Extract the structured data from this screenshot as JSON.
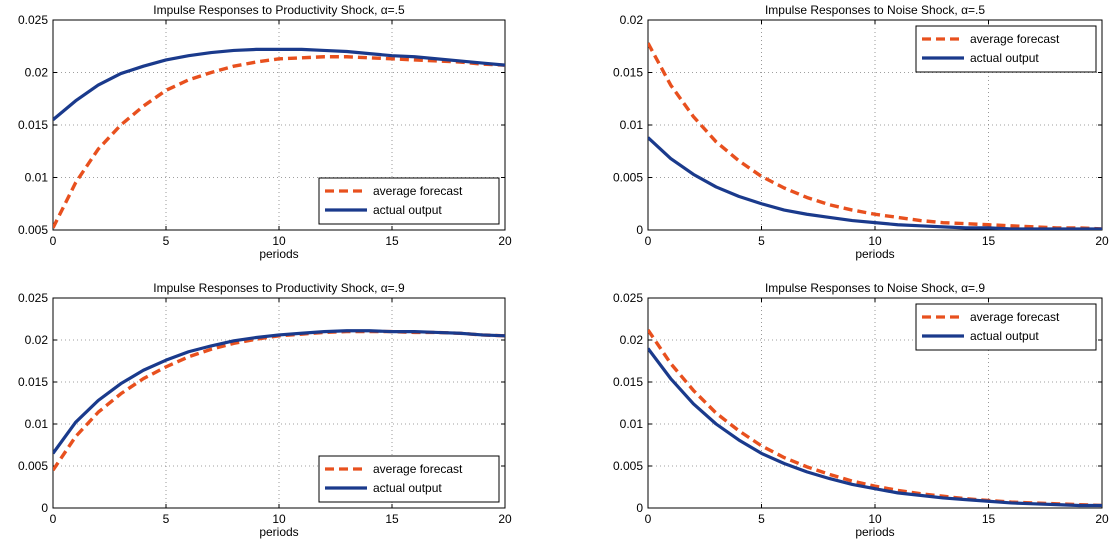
{
  "colors": {
    "forecast": "#E8501E",
    "actual": "#1A3A8C",
    "grid": "#808080"
  },
  "chart_data": [
    {
      "type": "line",
      "title": "Impulse Responses to Productivity Shock, α=.5",
      "xlabel": "periods",
      "ylabel": "",
      "xlim": [
        0,
        20
      ],
      "ylim": [
        0.005,
        0.025
      ],
      "xticks": [
        "0",
        "5",
        "10",
        "15",
        "20"
      ],
      "yticks": [
        "0.005",
        "0.01",
        "0.015",
        "0.02",
        "0.025"
      ],
      "grid": true,
      "legend_position": "bottom-right",
      "x": [
        0,
        1,
        2,
        3,
        4,
        5,
        6,
        7,
        8,
        9,
        10,
        11,
        12,
        13,
        14,
        15,
        16,
        17,
        18,
        19,
        20
      ],
      "series": [
        {
          "name": "average forecast",
          "style": "dashed",
          "color": "#E8501E",
          "values": [
            0.0052,
            0.0095,
            0.0127,
            0.015,
            0.0168,
            0.0183,
            0.0193,
            0.02,
            0.0206,
            0.021,
            0.0213,
            0.0214,
            0.0215,
            0.0215,
            0.0214,
            0.0213,
            0.0212,
            0.0211,
            0.021,
            0.0208,
            0.0207
          ]
        },
        {
          "name": "actual output",
          "style": "solid",
          "color": "#1A3A8C",
          "values": [
            0.0155,
            0.0173,
            0.0188,
            0.0199,
            0.0206,
            0.0212,
            0.0216,
            0.0219,
            0.0221,
            0.0222,
            0.0222,
            0.0222,
            0.0221,
            0.022,
            0.0218,
            0.0216,
            0.0215,
            0.0213,
            0.0211,
            0.0209,
            0.0207
          ]
        }
      ]
    },
    {
      "type": "line",
      "title": "Impulse Responses to Noise Shock, α=.5",
      "xlabel": "periods",
      "ylabel": "",
      "xlim": [
        0,
        20
      ],
      "ylim": [
        0,
        0.02
      ],
      "xticks": [
        "0",
        "5",
        "10",
        "15",
        "20"
      ],
      "yticks": [
        "0",
        "0.005",
        "0.01",
        "0.015",
        "0.02"
      ],
      "grid": true,
      "legend_position": "top-right",
      "x": [
        0,
        1,
        2,
        3,
        4,
        5,
        6,
        7,
        8,
        9,
        10,
        11,
        12,
        13,
        14,
        15,
        16,
        17,
        18,
        19,
        20
      ],
      "series": [
        {
          "name": "average forecast",
          "style": "dashed",
          "color": "#E8501E",
          "values": [
            0.0178,
            0.0138,
            0.0108,
            0.0084,
            0.0066,
            0.0051,
            0.004,
            0.0031,
            0.0024,
            0.0019,
            0.0015,
            0.0012,
            0.0009,
            0.0007,
            0.0006,
            0.0005,
            0.0004,
            0.0003,
            0.0002,
            0.0002,
            0.0001
          ]
        },
        {
          "name": "actual output",
          "style": "solid",
          "color": "#1A3A8C",
          "values": [
            0.0088,
            0.0068,
            0.0053,
            0.0041,
            0.0032,
            0.0025,
            0.0019,
            0.0015,
            0.0012,
            0.0009,
            0.0007,
            0.0005,
            0.0004,
            0.0003,
            0.0002,
            0.0002,
            0.0001,
            0.0001,
            0.0001,
            0.0001,
            0.0001
          ]
        }
      ]
    },
    {
      "type": "line",
      "title": "Impulse Responses to Productivity Shock, α=.9",
      "xlabel": "periods",
      "ylabel": "",
      "xlim": [
        0,
        20
      ],
      "ylim": [
        0,
        0.025
      ],
      "xticks": [
        "0",
        "5",
        "10",
        "15",
        "20"
      ],
      "yticks": [
        "0",
        "0.005",
        "0.01",
        "0.015",
        "0.02",
        "0.025"
      ],
      "grid": true,
      "legend_position": "bottom-right",
      "x": [
        0,
        1,
        2,
        3,
        4,
        5,
        6,
        7,
        8,
        9,
        10,
        11,
        12,
        13,
        14,
        15,
        16,
        17,
        18,
        19,
        20
      ],
      "series": [
        {
          "name": "average forecast",
          "style": "dashed",
          "color": "#E8501E",
          "values": [
            0.0045,
            0.0085,
            0.0114,
            0.0136,
            0.0154,
            0.0168,
            0.018,
            0.0189,
            0.0196,
            0.0201,
            0.0205,
            0.0207,
            0.0209,
            0.021,
            0.021,
            0.021,
            0.0209,
            0.0209,
            0.0208,
            0.0206,
            0.0205
          ]
        },
        {
          "name": "actual output",
          "style": "solid",
          "color": "#1A3A8C",
          "values": [
            0.0065,
            0.0102,
            0.0128,
            0.0148,
            0.0164,
            0.0176,
            0.0186,
            0.0193,
            0.0199,
            0.0203,
            0.0206,
            0.0208,
            0.021,
            0.0211,
            0.0211,
            0.021,
            0.021,
            0.0209,
            0.0208,
            0.0206,
            0.0205
          ]
        }
      ]
    },
    {
      "type": "line",
      "title": "Impulse Responses to Noise Shock, α=.9",
      "xlabel": "periods",
      "ylabel": "",
      "xlim": [
        0,
        20
      ],
      "ylim": [
        0,
        0.025
      ],
      "xticks": [
        "0",
        "5",
        "10",
        "15",
        "20"
      ],
      "yticks": [
        "0",
        "0.005",
        "0.01",
        "0.015",
        "0.02",
        "0.025"
      ],
      "grid": true,
      "legend_position": "top-right",
      "x": [
        0,
        1,
        2,
        3,
        4,
        5,
        6,
        7,
        8,
        9,
        10,
        11,
        12,
        13,
        14,
        15,
        16,
        17,
        18,
        19,
        20
      ],
      "series": [
        {
          "name": "average forecast",
          "style": "dashed",
          "color": "#E8501E",
          "values": [
            0.0212,
            0.0172,
            0.014,
            0.0113,
            0.0092,
            0.0074,
            0.006,
            0.0049,
            0.004,
            0.0032,
            0.0026,
            0.0021,
            0.0017,
            0.0014,
            0.0011,
            0.0009,
            0.0007,
            0.0006,
            0.0005,
            0.0004,
            0.0003
          ]
        },
        {
          "name": "actual output",
          "style": "solid",
          "color": "#1A3A8C",
          "values": [
            0.019,
            0.0154,
            0.0124,
            0.01,
            0.0081,
            0.0065,
            0.0053,
            0.0043,
            0.0035,
            0.0028,
            0.0023,
            0.0018,
            0.0015,
            0.0012,
            0.001,
            0.0008,
            0.0006,
            0.0005,
            0.0004,
            0.0003,
            0.0003
          ]
        }
      ]
    }
  ]
}
